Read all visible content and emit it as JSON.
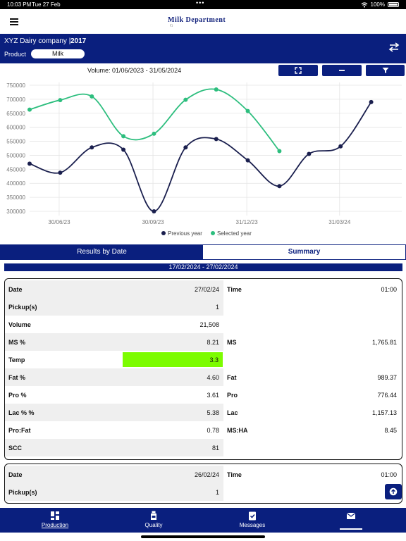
{
  "status_bar": {
    "time": "10:03 PM",
    "date": "Tue 27 Feb",
    "battery": "100%"
  },
  "app": {
    "logo_text": "Milk Department",
    "logo_sub": "G"
  },
  "header": {
    "company": "XYZ Dairy company",
    "separator": "|",
    "year": "2017",
    "product_label": "Product",
    "product_value": "Milk"
  },
  "volume": {
    "label": "Volume: 01/06/2023 - 31/05/2024"
  },
  "chart_data": {
    "type": "line",
    "x_ticks": [
      "30/06/23",
      "30/09/23",
      "31/12/23",
      "31/03/24"
    ],
    "y_ticks": [
      300000,
      350000,
      400000,
      450000,
      500000,
      550000,
      600000,
      650000,
      700000,
      750000
    ],
    "ylim": [
      285000,
      760000
    ],
    "series": [
      {
        "name": "Previous year",
        "color": "#1a1f4e",
        "x": [
          "01/06/23",
          "01/07/23",
          "01/08/23",
          "01/09/23",
          "01/10/23",
          "01/11/23",
          "01/12/23",
          "01/01/24",
          "01/02/24",
          "01/03/24",
          "01/04/24",
          "01/05/24"
        ],
        "values": [
          470000,
          438000,
          528000,
          520000,
          300000,
          528000,
          558000,
          482000,
          390000,
          505000,
          532000,
          690000
        ]
      },
      {
        "name": "Selected year",
        "color": "#2dbe7e",
        "x": [
          "01/06/23",
          "01/07/23",
          "01/08/23",
          "01/09/23",
          "01/10/23",
          "01/11/23",
          "01/12/23",
          "01/01/24",
          "01/02/24"
        ],
        "values": [
          663000,
          697000,
          710000,
          568000,
          577000,
          698000,
          735000,
          658000,
          515000
        ]
      }
    ],
    "grid": true,
    "legend_position": "bottom"
  },
  "tabs": {
    "results_by_date": "Results by Date",
    "summary": "Summary"
  },
  "date_range": "17/02/2024 - 27/02/2024",
  "card1": {
    "date_label": "Date",
    "date_value": "27/02/24",
    "time_label": "Time",
    "time_value": "01:00",
    "pickup_label": "Pickup(s)",
    "pickup_value": "1",
    "volume_label": "Volume",
    "volume_value": "21,508",
    "ms_pct_label": "MS %",
    "ms_pct_value": "8.21",
    "ms_label": "MS",
    "ms_value": "1,765.81",
    "temp_label": "Temp",
    "temp_value": "3.3",
    "temp_color": "#7cfc00",
    "fat_pct_label": "Fat %",
    "fat_pct_value": "4.60",
    "fat_label": "Fat",
    "fat_value": "989.37",
    "pro_pct_label": "Pro %",
    "pro_pct_value": "3.61",
    "pro_label": "Pro",
    "pro_value": "776.44",
    "lac_pct_label": "Lac % %",
    "lac_pct_value": "5.38",
    "lac_label": "Lac",
    "lac_value": "1,157.13",
    "profat_label": "Pro:Fat",
    "profat_value": "0.78",
    "msha_label": "MS:HA",
    "msha_value": "8.45",
    "scc_label": "SCC",
    "scc_value": "81"
  },
  "card2": {
    "date_label": "Date",
    "date_value": "26/02/24",
    "time_label": "Time",
    "time_value": "01:00",
    "pickup_label": "Pickup(s)",
    "pickup_value": "1"
  },
  "bottom_nav": [
    {
      "label": "Production",
      "icon": "grid-icon"
    },
    {
      "label": "Quality",
      "icon": "bottle-icon"
    },
    {
      "label": "Messages",
      "icon": "clipboard-check-icon"
    },
    {
      "label": "",
      "icon": "envelope-icon"
    }
  ],
  "colors": {
    "brand": "#0a1f7e",
    "selected_year": "#2dbe7e",
    "previous_year": "#1a1f4e"
  }
}
